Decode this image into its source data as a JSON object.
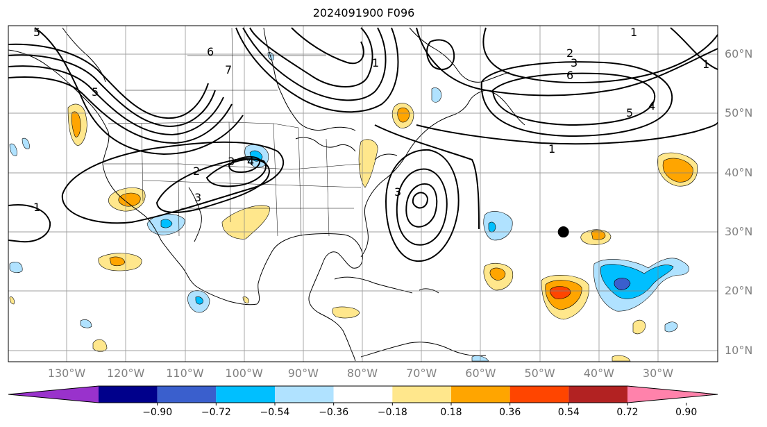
{
  "title": "2024091900 F096",
  "lon_labels": [
    {
      "lon": -130,
      "text": "130°W"
    },
    {
      "lon": -120,
      "text": "120°W"
    },
    {
      "lon": -110,
      "text": "110°W"
    },
    {
      "lon": -100,
      "text": "100°W"
    },
    {
      "lon": -90,
      "text": "90°W"
    },
    {
      "lon": -80,
      "text": "80°W"
    },
    {
      "lon": -70,
      "text": "70°W"
    },
    {
      "lon": -60,
      "text": "60°W"
    },
    {
      "lon": -50,
      "text": "50°W"
    },
    {
      "lon": -40,
      "text": "40°W"
    },
    {
      "lon": -30,
      "text": "30°W"
    }
  ],
  "lat_labels": [
    {
      "lat": 60,
      "text": "60°N"
    },
    {
      "lat": 50,
      "text": "50°N"
    },
    {
      "lat": 40,
      "text": "40°N"
    },
    {
      "lat": 30,
      "text": "30°N"
    },
    {
      "lat": 20,
      "text": "20°N"
    },
    {
      "lat": 10,
      "text": "10°N"
    }
  ],
  "colorbar": {
    "colors": [
      "#9932cc",
      "#00008b",
      "#3a5fcd",
      "#00bfff",
      "#b0e2ff",
      "#ffffff",
      "#ffe78c",
      "#ffa500",
      "#ff4500",
      "#b22222",
      "#ff82ab"
    ],
    "ticks": [
      "−0.90",
      "−0.72",
      "−0.54",
      "−0.36",
      "−0.18",
      "0.18",
      "0.36",
      "0.54",
      "0.72",
      "0.90"
    ]
  },
  "contour_labels": [
    "5",
    "6",
    "7",
    "5",
    "2",
    "3",
    "4",
    "3",
    "1",
    "1",
    "3",
    "2",
    "3",
    "6",
    "5",
    "4",
    "1",
    "1",
    "1"
  ],
  "marker": {
    "lon": -46,
    "lat": 30
  }
}
